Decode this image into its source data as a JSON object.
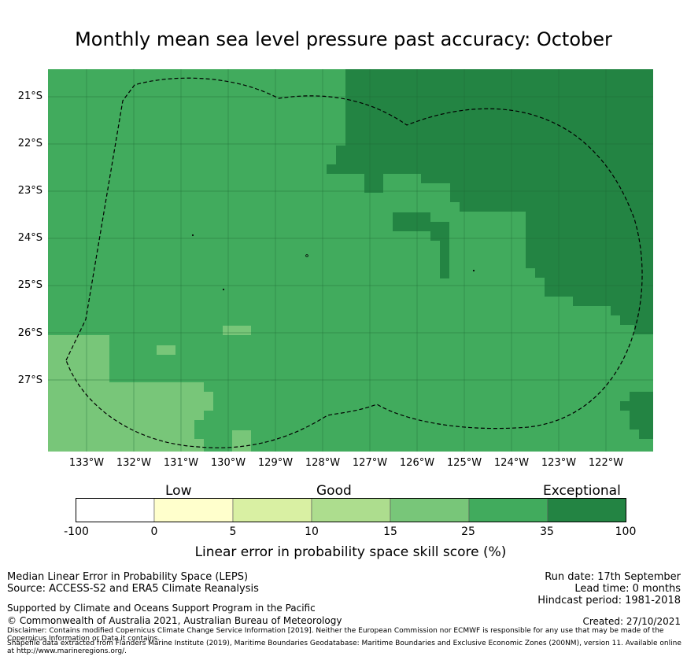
{
  "title": "Monthly mean sea level pressure past accuracy: October",
  "lat_labels": [
    "21°S",
    "22°S",
    "23°S",
    "24°S",
    "25°S",
    "26°S",
    "27°S"
  ],
  "lon_labels": [
    "133°W",
    "132°W",
    "131°W",
    "130°W",
    "129°W",
    "128°W",
    "127°W",
    "126°W",
    "125°W",
    "124°W",
    "123°W",
    "122°W"
  ],
  "colorbar": {
    "category_labels": [
      "Low",
      "Good",
      "Exceptional"
    ],
    "tick_labels": [
      "-100",
      "0",
      "5",
      "10",
      "15",
      "25",
      "35",
      "100"
    ],
    "bin_colors": [
      "#ffffff",
      "#ffffcc",
      "#d9f0a3",
      "#addd8e",
      "#78c679",
      "#41ab5d",
      "#238443"
    ],
    "title": "Linear error in probability space skill score (%)"
  },
  "map_colors": {
    "background": "#41ab5d",
    "exceptional": "#238443",
    "good": "#78c679",
    "grid": "#1f6a35",
    "outline": "#000000"
  },
  "footer": {
    "left_line1": "Median Linear Error in Probability Space (LEPS)",
    "left_line2": "Source: ACCESS-S2 and ERA5 Climate Reanalysis",
    "support": "Supported by Climate and Oceans Support Program in the Pacific",
    "copyright": "© Commonwealth of Australia 2021, Australian Bureau of Meteorology",
    "disclaimer": "Disclaimer: Contains modified Copernicus Climate Change Service Information [2019]. Neither the European Commission nor ECMWF is responsible for any use that may be made of the Copernicus Information or Data it contains.",
    "shapefile": "Shapefile data extracted from Flanders Marine Institute (2019), Maritime Boundaries Geodatabase: Maritime Boundaries and Exclusive Economic Zones (200NM), version 11. Available online at http://www.marineregions.org/.",
    "run_date": "Run date: 17th September",
    "lead_time": "Lead time: 0 months",
    "hindcast": "Hindcast period: 1981-2018",
    "created": "Created: 27/10/2021"
  }
}
